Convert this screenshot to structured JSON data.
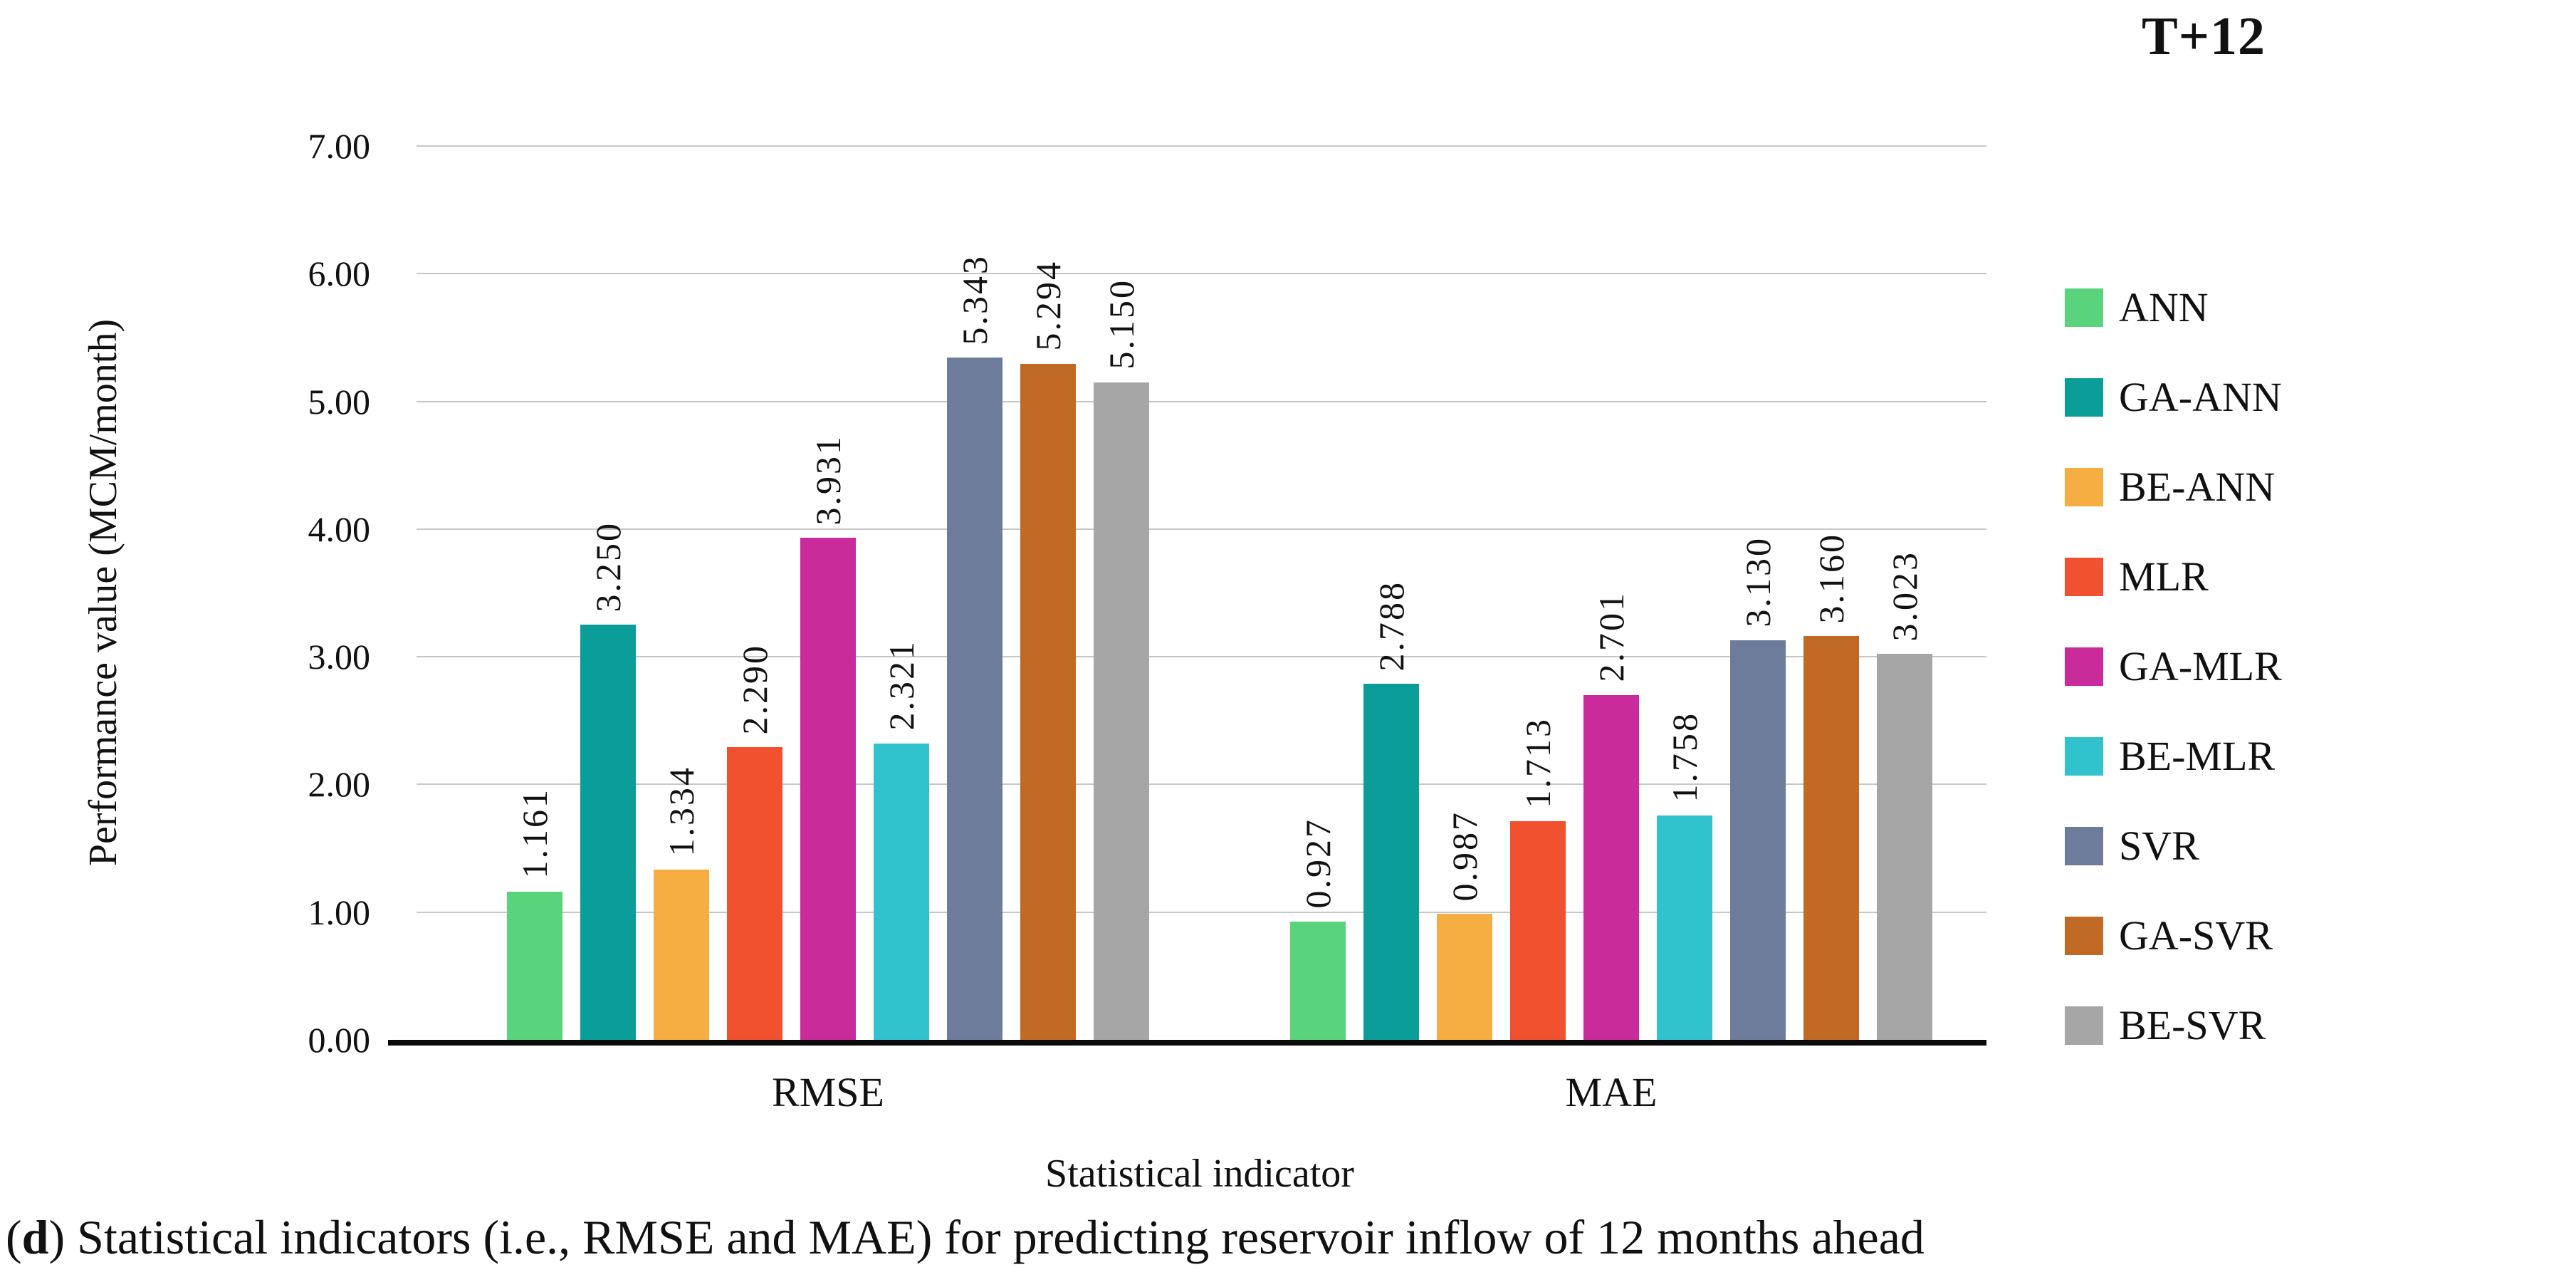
{
  "chart_data": {
    "type": "bar",
    "title": "T+12",
    "xlabel": "Statistical indicator",
    "ylabel": "Performance value (MCM/month)",
    "categories": [
      "RMSE",
      "MAE"
    ],
    "series": [
      {
        "name": "ANN",
        "color": "#5ad47c",
        "values": [
          1.161,
          0.927
        ],
        "labels": [
          "1.161",
          "0.927"
        ]
      },
      {
        "name": "GA-ANN",
        "color": "#0b9e99",
        "values": [
          3.25,
          2.788
        ],
        "labels": [
          "3.250",
          "2.788"
        ]
      },
      {
        "name": "BE-ANN",
        "color": "#f6ae43",
        "values": [
          1.334,
          0.987
        ],
        "labels": [
          "1.334",
          "0.987"
        ]
      },
      {
        "name": "MLR",
        "color": "#f1512e",
        "values": [
          2.29,
          1.713
        ],
        "labels": [
          "2.290",
          "1.713"
        ]
      },
      {
        "name": "GA-MLR",
        "color": "#c92b9b",
        "values": [
          3.931,
          2.701
        ],
        "labels": [
          "3.931",
          "2.701"
        ]
      },
      {
        "name": "BE-MLR",
        "color": "#31c3cd",
        "values": [
          2.321,
          1.758
        ],
        "labels": [
          "2.321",
          "1.758"
        ]
      },
      {
        "name": "SVR",
        "color": "#6d7c9b",
        "values": [
          5.343,
          3.13
        ],
        "labels": [
          "5.343",
          "3.130"
        ]
      },
      {
        "name": "GA-SVR",
        "color": "#c06a26",
        "values": [
          5.294,
          3.16
        ],
        "labels": [
          "5.294",
          "3.160"
        ]
      },
      {
        "name": "BE-SVR",
        "color": "#a6a6a6",
        "values": [
          5.15,
          3.023
        ],
        "labels": [
          "5.150",
          "3.023"
        ]
      }
    ],
    "ylim": [
      0,
      7
    ],
    "ytick_labels": [
      "0.00",
      "1.00",
      "2.00",
      "3.00",
      "4.00",
      "5.00",
      "6.00",
      "7.00"
    ],
    "grid": true,
    "legend_position": "right",
    "value_label_rotation": 90
  },
  "caption": {
    "open": "(",
    "marker": "d",
    "rest": ") Statistical indicators (i.e., RMSE and MAE) for predicting reservoir inflow of 12 months ahead"
  }
}
